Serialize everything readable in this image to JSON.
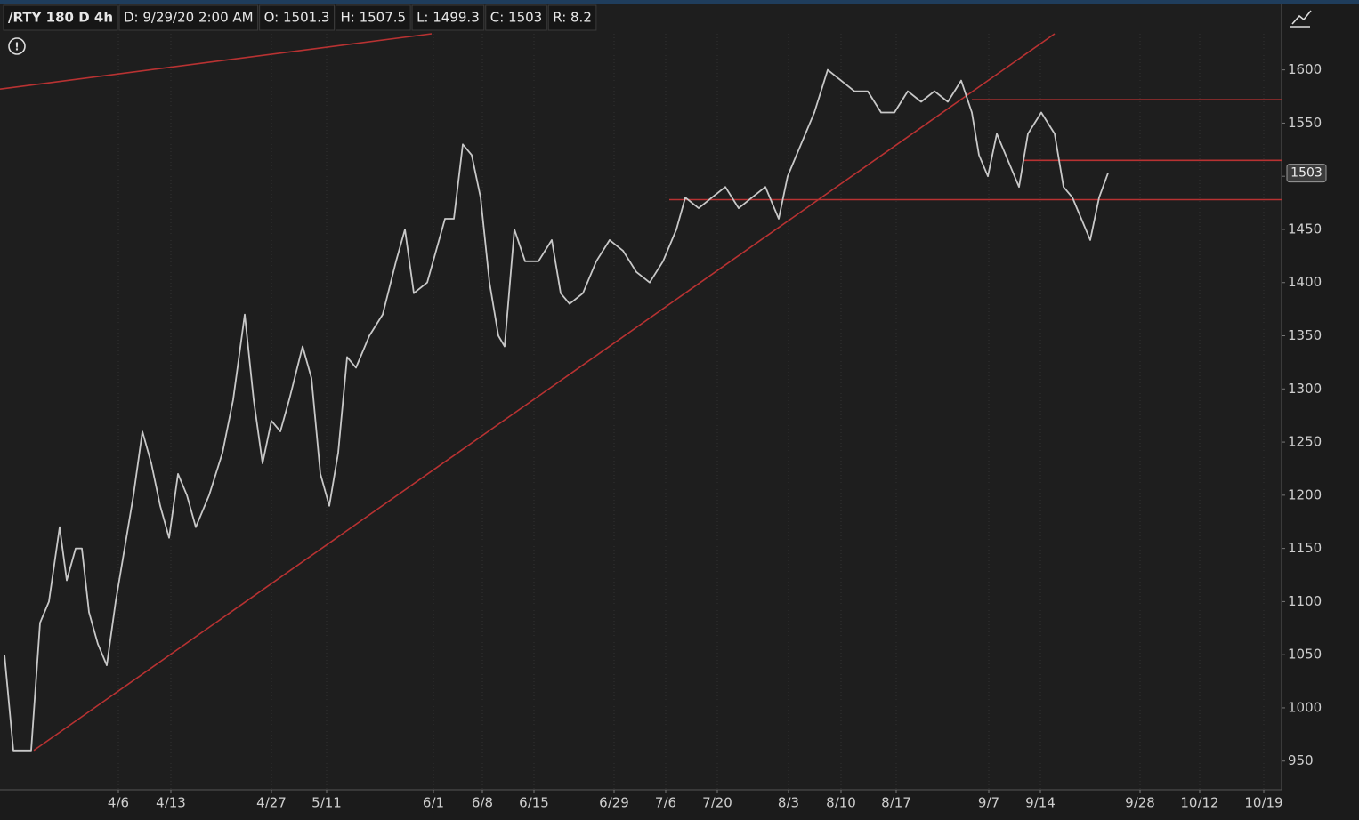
{
  "chart_data": {
    "type": "line",
    "title": "/RTY 180 D 4h",
    "info": [
      "D: 9/29/20 2:00 AM",
      "O: 1501.3",
      "H: 1507.5",
      "L: 1499.3",
      "C: 1503",
      "R: 8.2"
    ],
    "color": "#c8c8c8",
    "x": [
      1,
      3,
      7,
      9,
      11,
      13.4,
      15,
      17,
      18.4,
      20,
      22,
      24,
      26,
      28,
      30,
      32,
      34,
      36,
      38,
      40,
      42,
      44,
      47,
      50,
      52.4,
      55,
      57,
      59,
      61,
      63,
      65,
      68,
      70,
      72,
      74,
      76,
      78,
      80,
      83,
      86,
      89,
      91,
      93,
      96,
      98,
      100,
      102,
      104,
      106,
      108,
      110,
      112,
      113.4,
      115.6,
      118,
      121,
      124,
      126,
      128,
      131,
      134,
      137,
      140,
      143,
      146,
      149,
      152,
      154,
      157,
      160,
      163,
      166,
      169,
      172,
      175,
      177,
      180,
      183,
      186,
      189,
      192,
      195,
      198,
      201,
      204,
      207,
      210,
      213,
      216,
      218.4,
      220,
      222,
      224,
      227,
      229,
      231,
      234,
      237,
      239,
      241,
      243,
      245,
      247,
      249
    ],
    "values": [
      1050,
      960,
      960,
      1080,
      1100,
      1170,
      1120,
      1150,
      1150,
      1090,
      1060,
      1040,
      1100,
      1150,
      1200,
      1260,
      1230,
      1190,
      1160,
      1220,
      1200,
      1170,
      1200,
      1240,
      1290,
      1370,
      1290,
      1230,
      1270,
      1260,
      1290,
      1340,
      1310,
      1220,
      1190,
      1240,
      1330,
      1320,
      1350,
      1370,
      1420,
      1450,
      1390,
      1400,
      1430,
      1460,
      1460,
      1530,
      1520,
      1480,
      1400,
      1350,
      1340,
      1450,
      1420,
      1420,
      1440,
      1390,
      1380,
      1390,
      1420,
      1440,
      1430,
      1410,
      1400,
      1420,
      1450,
      1480,
      1470,
      1480,
      1490,
      1470,
      1480,
      1490,
      1460,
      1500,
      1530,
      1560,
      1600,
      1590,
      1580,
      1580,
      1560,
      1560,
      1580,
      1570,
      1580,
      1570,
      1590,
      1560,
      1520,
      1500,
      1540,
      1510,
      1490,
      1540,
      1560,
      1540,
      1490,
      1480,
      1460,
      1440,
      1480,
      1503
    ],
    "xlim": [
      0,
      288
    ],
    "ylim": [
      923,
      1634
    ],
    "xticks": [
      {
        "value": 26.6,
        "label": "4/6"
      },
      {
        "value": 38.4,
        "label": "4/13"
      },
      {
        "value": 61,
        "label": "4/27"
      },
      {
        "value": 73.4,
        "label": "5/11"
      },
      {
        "value": 97.4,
        "label": "6/1"
      },
      {
        "value": 108.4,
        "label": "6/8"
      },
      {
        "value": 120,
        "label": "6/15"
      },
      {
        "value": 138,
        "label": "6/29"
      },
      {
        "value": 149.6,
        "label": "7/6"
      },
      {
        "value": 161.2,
        "label": "7/20"
      },
      {
        "value": 177.2,
        "label": "8/3"
      },
      {
        "value": 189,
        "label": "8/10"
      },
      {
        "value": 201.4,
        "label": "8/17"
      },
      {
        "value": 222.2,
        "label": "9/7"
      },
      {
        "value": 233.8,
        "label": "9/14"
      },
      {
        "value": 256.2,
        "label": "9/28"
      },
      {
        "value": 269.6,
        "label": "10/12"
      },
      {
        "value": 284,
        "label": "10/19"
      }
    ],
    "yticks": [
      950,
      1000,
      1050,
      1100,
      1150,
      1200,
      1250,
      1300,
      1350,
      1400,
      1450,
      1500,
      1550,
      1600
    ],
    "drawing_color": "#b83232",
    "lines": [
      {
        "x": [
          7.6,
          237
        ],
        "y": [
          960,
          1634
        ]
      },
      {
        "x": [
          0,
          97
        ],
        "y": [
          1582,
          1634
        ]
      },
      {
        "x": [
          218.4,
          288
        ],
        "y": [
          1572,
          1572
        ]
      },
      {
        "x": [
          230,
          288
        ],
        "y": [
          1515,
          1515
        ]
      },
      {
        "x": [
          150.4,
          288
        ],
        "y": [
          1478,
          1478
        ]
      }
    ]
  }
}
